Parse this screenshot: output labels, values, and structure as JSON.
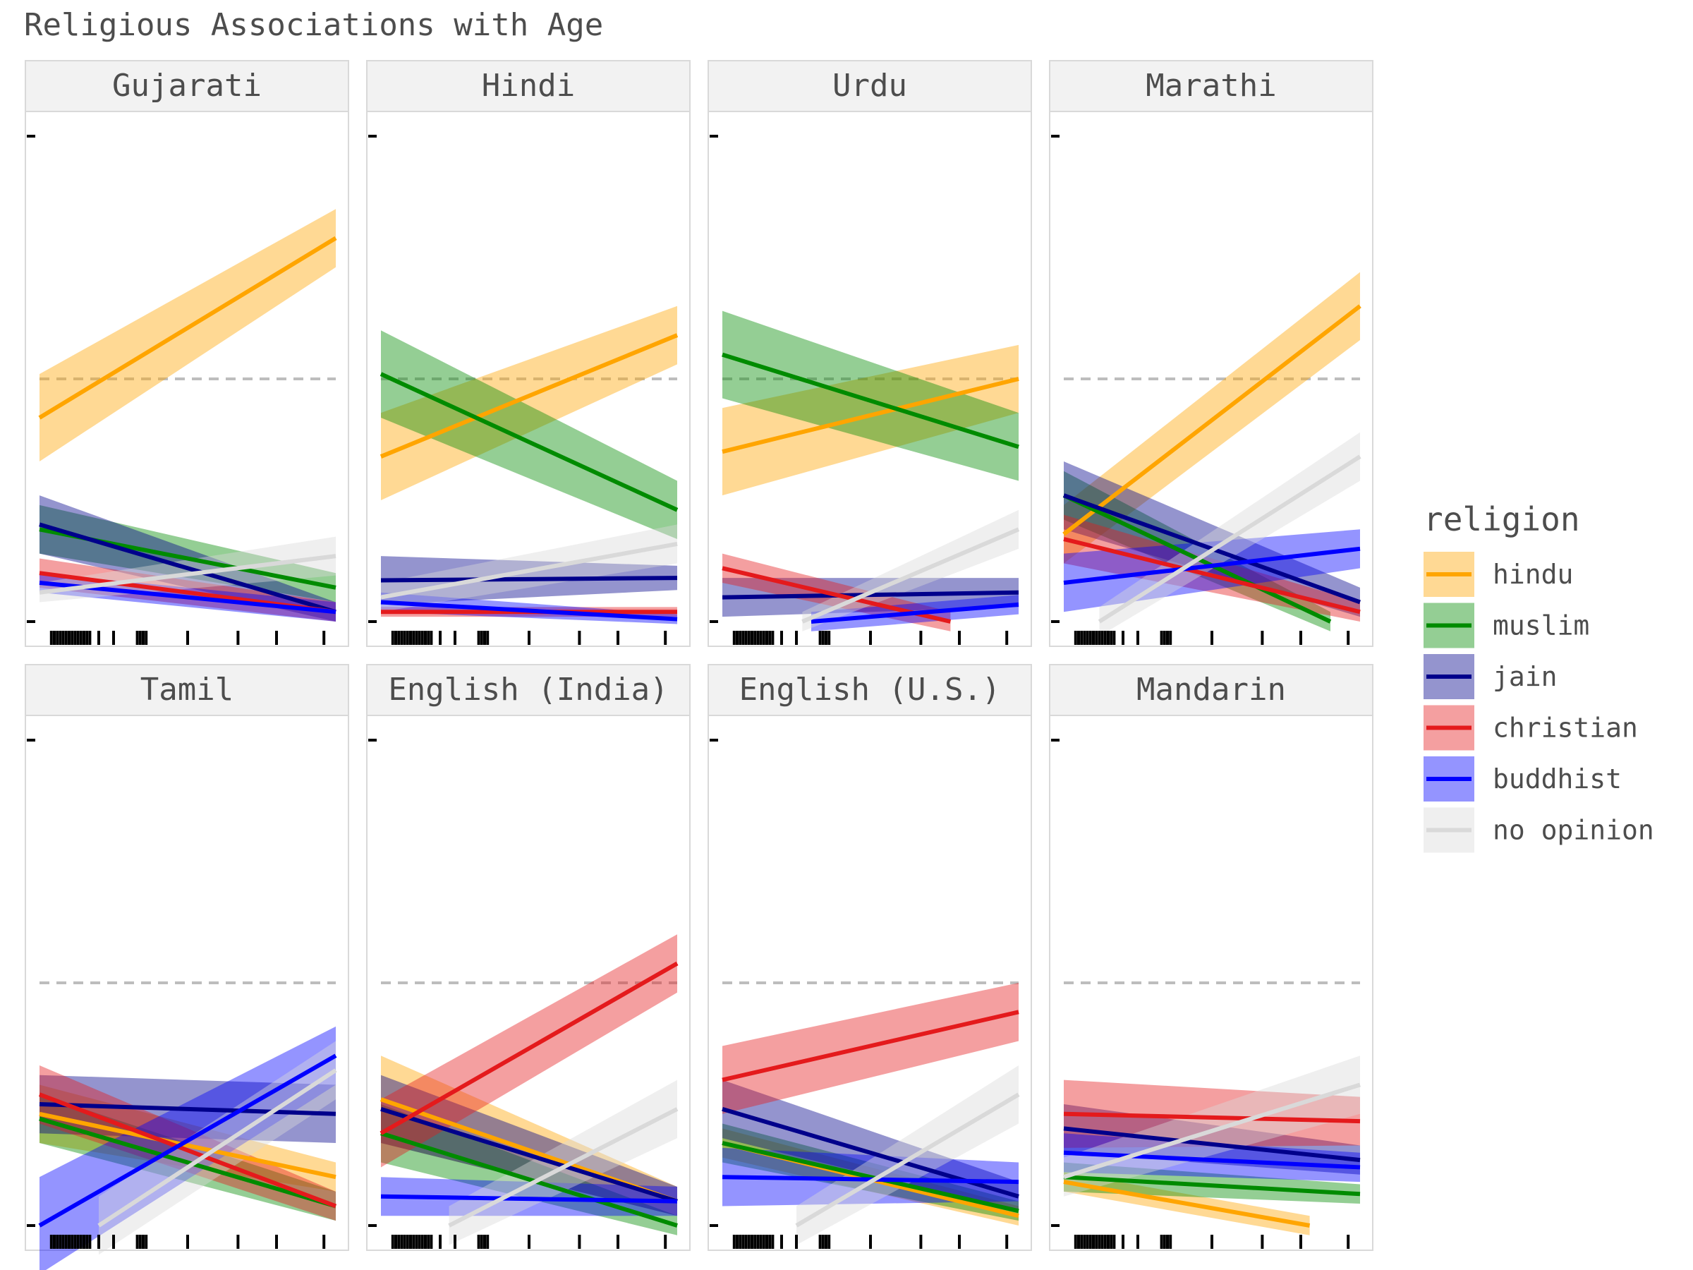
{
  "chart_data": {
    "type": "line",
    "title": "Religious Associations with Age",
    "xlabel": "",
    "ylabel": "",
    "ylim": [
      0,
      1
    ],
    "xlim": [
      0,
      1
    ],
    "reference_line": 0.5,
    "grid": false,
    "legend": {
      "title": "religion",
      "placement": "right"
    },
    "series_names": [
      "hindu",
      "muslim",
      "jain",
      "christian",
      "buddhist",
      "no opinion"
    ],
    "colors": {
      "hindu": "#FFA500",
      "muslim": "#008B00",
      "jain": "#00008B",
      "christian": "#E41A1C",
      "buddhist": "#0000FF",
      "no opinion": "#D9D9D9"
    },
    "rug": [
      0.04,
      0.05,
      0.06,
      0.07,
      0.08,
      0.09,
      0.1,
      0.11,
      0.12,
      0.13,
      0.14,
      0.15,
      0.16,
      0.17,
      0.2,
      0.25,
      0.33,
      0.34,
      0.35,
      0.36,
      0.5,
      0.67,
      0.8,
      0.96
    ],
    "panels": [
      {
        "name": "Gujarati",
        "series": [
          {
            "name": "hindu",
            "x": [
              0,
              1
            ],
            "y": [
              0.42,
              0.79
            ],
            "band": [
              0.09,
              0.06
            ]
          },
          {
            "name": "muslim",
            "x": [
              0,
              1
            ],
            "y": [
              0.19,
              0.07
            ],
            "band": [
              0.05,
              0.03
            ]
          },
          {
            "name": "jain",
            "x": [
              0,
              1
            ],
            "y": [
              0.2,
              0.02
            ],
            "band": [
              0.06,
              0.02
            ]
          },
          {
            "name": "christian",
            "x": [
              0,
              1
            ],
            "y": [
              0.1,
              0.02
            ],
            "band": [
              0.03,
              0.02
            ]
          },
          {
            "name": "buddhist",
            "x": [
              0,
              1
            ],
            "y": [
              0.08,
              0.02
            ],
            "band": [
              0.02,
              0.02
            ]
          },
          {
            "name": "no opinion",
            "x": [
              0,
              1
            ],
            "y": [
              0.06,
              0.135
            ],
            "band": [
              0.02,
              0.04
            ]
          }
        ]
      },
      {
        "name": "Hindi",
        "series": [
          {
            "name": "hindu",
            "x": [
              0,
              1
            ],
            "y": [
              0.34,
              0.59
            ],
            "band": [
              0.09,
              0.06
            ]
          },
          {
            "name": "muslim",
            "x": [
              0,
              1
            ],
            "y": [
              0.51,
              0.23
            ],
            "band": [
              0.09,
              0.06
            ]
          },
          {
            "name": "jain",
            "x": [
              0,
              1
            ],
            "y": [
              0.085,
              0.09
            ],
            "band": [
              0.05,
              0.025
            ]
          },
          {
            "name": "christian",
            "x": [
              0,
              1
            ],
            "y": [
              0.02,
              0.02
            ],
            "band": [
              0.01,
              0.01
            ]
          },
          {
            "name": "buddhist",
            "x": [
              0,
              1
            ],
            "y": [
              0.04,
              0.005
            ],
            "band": [
              0.02,
              0.01
            ]
          },
          {
            "name": "no opinion",
            "x": [
              0,
              1
            ],
            "y": [
              0.05,
              0.16
            ],
            "band": [
              0.03,
              0.04
            ]
          }
        ]
      },
      {
        "name": "Urdu",
        "series": [
          {
            "name": "hindu",
            "x": [
              0,
              1
            ],
            "y": [
              0.35,
              0.5
            ],
            "band": [
              0.09,
              0.07
            ]
          },
          {
            "name": "muslim",
            "x": [
              0,
              1
            ],
            "y": [
              0.55,
              0.36
            ],
            "band": [
              0.09,
              0.07
            ]
          },
          {
            "name": "jain",
            "x": [
              0,
              1
            ],
            "y": [
              0.05,
              0.06
            ],
            "band": [
              0.04,
              0.03
            ]
          },
          {
            "name": "christian",
            "x": [
              0,
              0.77
            ],
            "y": [
              0.11,
              0
            ],
            "band": [
              0.03,
              0.02
            ]
          },
          {
            "name": "buddhist",
            "x": [
              0.3,
              1
            ],
            "y": [
              0,
              0.035
            ],
            "band": [
              0.02,
              0.02
            ]
          },
          {
            "name": "no opinion",
            "x": [
              0.27,
              1
            ],
            "y": [
              0,
              0.19
            ],
            "band": [
              0.02,
              0.04
            ]
          }
        ]
      },
      {
        "name": "Marathi",
        "series": [
          {
            "name": "hindu",
            "x": [
              0,
              1
            ],
            "y": [
              0.18,
              0.65
            ],
            "band": [
              0.06,
              0.07
            ]
          },
          {
            "name": "muslim",
            "x": [
              0,
              0.9
            ],
            "y": [
              0.26,
              0.0
            ],
            "band": [
              0.05,
              0.02
            ]
          },
          {
            "name": "jain",
            "x": [
              0,
              1
            ],
            "y": [
              0.26,
              0.04
            ],
            "band": [
              0.07,
              0.03
            ]
          },
          {
            "name": "christian",
            "x": [
              0,
              1
            ],
            "y": [
              0.17,
              0.02
            ],
            "band": [
              0.05,
              0.02
            ]
          },
          {
            "name": "buddhist",
            "x": [
              0,
              1
            ],
            "y": [
              0.08,
              0.15
            ],
            "band": [
              0.06,
              0.04
            ]
          },
          {
            "name": "no opinion",
            "x": [
              0.12,
              1
            ],
            "y": [
              0,
              0.34
            ],
            "band": [
              0.03,
              0.05
            ]
          }
        ]
      },
      {
        "name": "Tamil",
        "series": [
          {
            "name": "hindu",
            "x": [
              0,
              1
            ],
            "y": [
              0.23,
              0.1
            ],
            "band": [
              0.06,
              0.03
            ]
          },
          {
            "name": "muslim",
            "x": [
              0,
              1
            ],
            "y": [
              0.22,
              0.04
            ],
            "band": [
              0.05,
              0.03
            ]
          },
          {
            "name": "jain",
            "x": [
              0,
              1
            ],
            "y": [
              0.25,
              0.23
            ],
            "band": [
              0.06,
              0.06
            ]
          },
          {
            "name": "christian",
            "x": [
              0,
              1
            ],
            "y": [
              0.27,
              0.04
            ],
            "band": [
              0.06,
              0.03
            ]
          },
          {
            "name": "buddhist",
            "x": [
              0,
              1
            ],
            "y": [
              0,
              0.35
            ],
            "band": [
              0.1,
              0.06
            ]
          },
          {
            "name": "no opinion",
            "x": [
              0.2,
              1
            ],
            "y": [
              0,
              0.32
            ],
            "band": [
              0.06,
              0.06
            ]
          }
        ]
      },
      {
        "name": "English (India)",
        "series": [
          {
            "name": "hindu",
            "x": [
              0,
              1
            ],
            "y": [
              0.26,
              0.05
            ],
            "band": [
              0.09,
              0.03
            ]
          },
          {
            "name": "muslim",
            "x": [
              0,
              1
            ],
            "y": [
              0.19,
              0.0
            ],
            "band": [
              0.06,
              0.02
            ]
          },
          {
            "name": "jain",
            "x": [
              0,
              1
            ],
            "y": [
              0.24,
              0.05
            ],
            "band": [
              0.07,
              0.03
            ]
          },
          {
            "name": "christian",
            "x": [
              0,
              1
            ],
            "y": [
              0.19,
              0.54
            ],
            "band": [
              0.07,
              0.06
            ]
          },
          {
            "name": "buddhist",
            "x": [
              0,
              1
            ],
            "y": [
              0.06,
              0.05
            ],
            "band": [
              0.04,
              0.03
            ]
          },
          {
            "name": "no opinion",
            "x": [
              0.23,
              1
            ],
            "y": [
              0,
              0.24
            ],
            "band": [
              0.04,
              0.06
            ]
          }
        ]
      },
      {
        "name": "English (U.S.)",
        "series": [
          {
            "name": "hindu",
            "x": [
              0,
              1
            ],
            "y": [
              0.17,
              0.02
            ],
            "band": [
              0.03,
              0.02
            ]
          },
          {
            "name": "muslim",
            "x": [
              0,
              1
            ],
            "y": [
              0.17,
              0.03
            ],
            "band": [
              0.04,
              0.02
            ]
          },
          {
            "name": "jain",
            "x": [
              0,
              1
            ],
            "y": [
              0.24,
              0.06
            ],
            "band": [
              0.06,
              0.03
            ]
          },
          {
            "name": "christian",
            "x": [
              0,
              1
            ],
            "y": [
              0.3,
              0.44
            ],
            "band": [
              0.07,
              0.06
            ]
          },
          {
            "name": "buddhist",
            "x": [
              0,
              1
            ],
            "y": [
              0.1,
              0.09
            ],
            "band": [
              0.06,
              0.04
            ]
          },
          {
            "name": "no opinion",
            "x": [
              0.25,
              1
            ],
            "y": [
              0,
              0.27
            ],
            "band": [
              0.04,
              0.06
            ]
          }
        ]
      },
      {
        "name": "Mandarin",
        "series": [
          {
            "name": "hindu",
            "x": [
              0,
              0.83
            ],
            "y": [
              0.09,
              0.0
            ],
            "band": [
              0.02,
              0.02
            ]
          },
          {
            "name": "muslim",
            "x": [
              0,
              1
            ],
            "y": [
              0.1,
              0.065
            ],
            "band": [
              0.03,
              0.02
            ]
          },
          {
            "name": "jain",
            "x": [
              0,
              1
            ],
            "y": [
              0.2,
              0.135
            ],
            "band": [
              0.05,
              0.03
            ]
          },
          {
            "name": "christian",
            "x": [
              0,
              1
            ],
            "y": [
              0.23,
              0.215
            ],
            "band": [
              0.07,
              0.05
            ]
          },
          {
            "name": "buddhist",
            "x": [
              0,
              1
            ],
            "y": [
              0.15,
              0.12
            ],
            "band": [
              0.04,
              0.03
            ]
          },
          {
            "name": "no opinion",
            "x": [
              0,
              1
            ],
            "y": [
              0.1,
              0.29
            ],
            "band": [
              0.04,
              0.06
            ]
          }
        ]
      }
    ]
  }
}
